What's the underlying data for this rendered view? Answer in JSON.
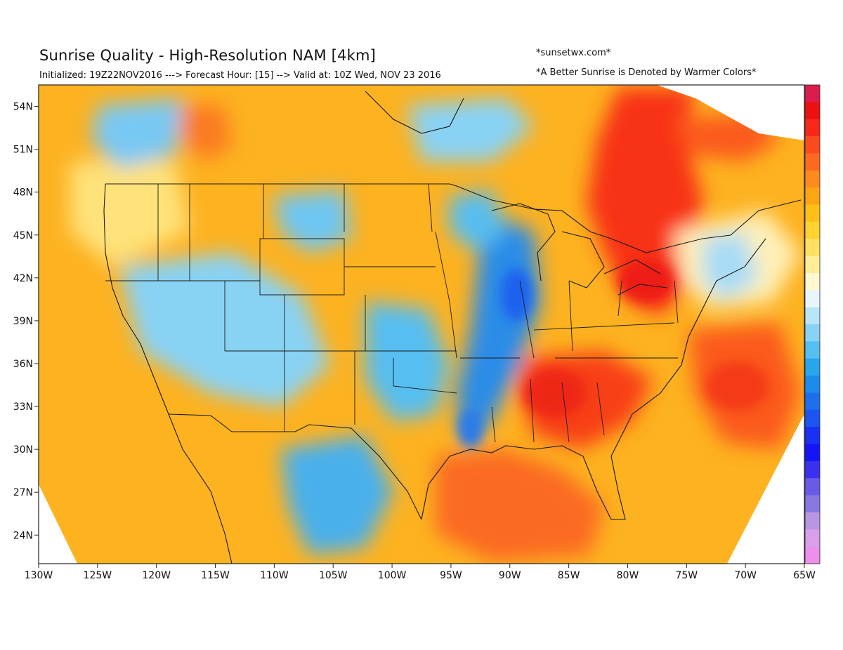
{
  "header": {
    "title": "Sunrise Quality - High-Resolution NAM [4km]",
    "subtitle": "Initialized: 19Z22NOV2016 ---> Forecast Hour: [15] --> Valid at: 10Z Wed, NOV 23 2016",
    "credit": "*sunsetwx.com*",
    "note": "*A Better Sunrise is Denoted by Warmer Colors*"
  },
  "chart_data": {
    "type": "heatmap",
    "title": "Sunrise Quality - High-Resolution NAM [4km]",
    "xlim": [
      -130,
      -65
    ],
    "ylim": [
      22,
      55.5
    ],
    "x_ticks": [
      {
        "value": -130,
        "label": "130W"
      },
      {
        "value": -125,
        "label": "125W"
      },
      {
        "value": -120,
        "label": "120W"
      },
      {
        "value": -115,
        "label": "115W"
      },
      {
        "value": -110,
        "label": "110W"
      },
      {
        "value": -105,
        "label": "105W"
      },
      {
        "value": -100,
        "label": "100W"
      },
      {
        "value": -95,
        "label": "95W"
      },
      {
        "value": -90,
        "label": "90W"
      },
      {
        "value": -85,
        "label": "85W"
      },
      {
        "value": -80,
        "label": "80W"
      },
      {
        "value": -75,
        "label": "75W"
      },
      {
        "value": -70,
        "label": "70W"
      },
      {
        "value": -65,
        "label": "65W"
      }
    ],
    "y_ticks": [
      {
        "value": 54,
        "label": "54N"
      },
      {
        "value": 51,
        "label": "51N"
      },
      {
        "value": 48,
        "label": "48N"
      },
      {
        "value": 45,
        "label": "45N"
      },
      {
        "value": 42,
        "label": "42N"
      },
      {
        "value": 39,
        "label": "39N"
      },
      {
        "value": 36,
        "label": "36N"
      },
      {
        "value": 33,
        "label": "33N"
      },
      {
        "value": 30,
        "label": "30N"
      },
      {
        "value": 27,
        "label": "27N"
      },
      {
        "value": 24,
        "label": "24N"
      }
    ],
    "colorbar": {
      "placement": "right",
      "labels": "none",
      "colors": [
        "#dc1c4c",
        "#ee1010",
        "#f82818",
        "#fb4a1e",
        "#fc6a22",
        "#fd8a1c",
        "#fda614",
        "#fec018",
        "#ffd230",
        "#ffe060",
        "#ffee98",
        "#fff8d0",
        "#e8f6fc",
        "#b8e6f8",
        "#88d2f4",
        "#56bef0",
        "#28a6ec",
        "#1c8cec",
        "#1c70ee",
        "#1c54f0",
        "#1a30f4",
        "#1414f8",
        "#3a30f0",
        "#6a5ae8",
        "#8a78e0",
        "#b896e4",
        "#d8a0e8",
        "#ec90ec"
      ]
    },
    "features": {
      "basemap": "coastlines, national borders, US state boundaries",
      "regions": [
        {
          "name": "Great Lakes to Quebec band",
          "quality": "high",
          "color": "#f83218"
        },
        {
          "name": "Tennessee Valley / Southeast",
          "quality": "high",
          "color": "#f84018"
        },
        {
          "name": "Western Atlantic",
          "quality": "high",
          "color": "#fb5a1e"
        },
        {
          "name": "Gulf of Mexico",
          "quality": "high",
          "color": "#fb6a22"
        },
        {
          "name": "Mississippi Valley corridor",
          "quality": "low",
          "color": "#2a8ce8"
        },
        {
          "name": "Southern Plains / Texas",
          "quality": "low",
          "color": "#56bef0"
        },
        {
          "name": "Mexican Plateau",
          "quality": "low",
          "color": "#48b0ec"
        },
        {
          "name": "Great Basin / Rockies",
          "quality": "mixed",
          "color": "#88d2f4"
        },
        {
          "name": "Eastern Pacific",
          "quality": "moderate",
          "color": "#fdae24"
        }
      ]
    }
  }
}
